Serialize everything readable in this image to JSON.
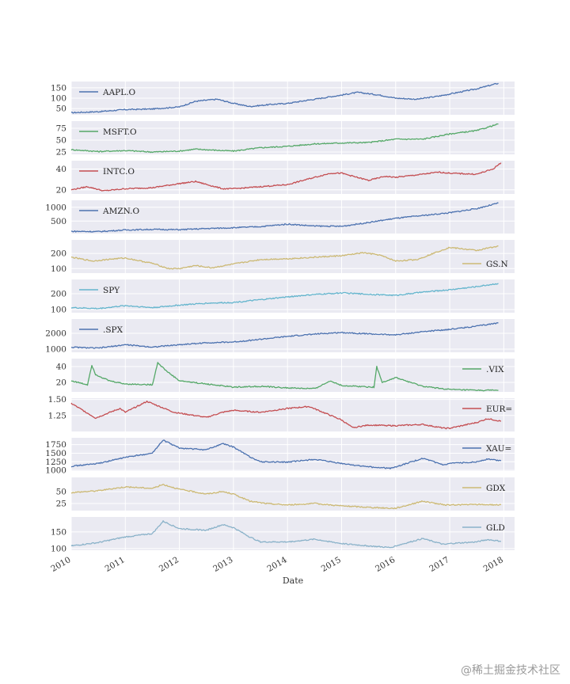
{
  "chart_data": {
    "type": "line",
    "layout": "stacked-subplots",
    "xlabel": "Date",
    "x_ticks": [
      "2010",
      "2011",
      "2012",
      "2013",
      "2014",
      "2015",
      "2016",
      "2017",
      "2018"
    ],
    "x_range": [
      2010.0,
      2018.2
    ],
    "series": [
      {
        "name": "AAPL.O",
        "color": "#4c72b0",
        "legend_pos": "upper-left",
        "ylim": [
          20,
          180
        ],
        "yticks": [
          50,
          100,
          150
        ],
        "points": [
          [
            2010.0,
            30
          ],
          [
            2010.5,
            35
          ],
          [
            2011.0,
            45
          ],
          [
            2011.5,
            48
          ],
          [
            2012.0,
            58
          ],
          [
            2012.3,
            85
          ],
          [
            2012.7,
            95
          ],
          [
            2013.0,
            75
          ],
          [
            2013.3,
            60
          ],
          [
            2013.7,
            70
          ],
          [
            2014.0,
            75
          ],
          [
            2014.5,
            95
          ],
          [
            2015.0,
            115
          ],
          [
            2015.3,
            128
          ],
          [
            2015.7,
            115
          ],
          [
            2016.0,
            100
          ],
          [
            2016.4,
            95
          ],
          [
            2016.8,
            110
          ],
          [
            2017.0,
            120
          ],
          [
            2017.5,
            145
          ],
          [
            2017.9,
            172
          ]
        ]
      },
      {
        "name": "MSFT.O",
        "color": "#55a868",
        "legend_pos": "upper-left",
        "ylim": [
          20,
          90
        ],
        "yticks": [
          25,
          50,
          75
        ],
        "points": [
          [
            2010.0,
            30
          ],
          [
            2010.5,
            26
          ],
          [
            2011.0,
            28
          ],
          [
            2011.5,
            25
          ],
          [
            2012.0,
            27
          ],
          [
            2012.3,
            31
          ],
          [
            2012.8,
            28
          ],
          [
            2013.0,
            27
          ],
          [
            2013.5,
            34
          ],
          [
            2014.0,
            37
          ],
          [
            2014.5,
            42
          ],
          [
            2015.0,
            44
          ],
          [
            2015.5,
            45
          ],
          [
            2016.0,
            52
          ],
          [
            2016.5,
            52
          ],
          [
            2017.0,
            63
          ],
          [
            2017.5,
            70
          ],
          [
            2017.9,
            84
          ]
        ]
      },
      {
        "name": "INTC.O",
        "color": "#c44e52",
        "legend_pos": "upper-left",
        "ylim": [
          16,
          48
        ],
        "yticks": [
          20,
          40
        ],
        "points": [
          [
            2010.0,
            20
          ],
          [
            2010.3,
            23
          ],
          [
            2010.6,
            19
          ],
          [
            2011.0,
            21
          ],
          [
            2011.5,
            22
          ],
          [
            2012.0,
            26
          ],
          [
            2012.3,
            28
          ],
          [
            2012.8,
            21
          ],
          [
            2013.0,
            21
          ],
          [
            2013.5,
            23
          ],
          [
            2014.0,
            25
          ],
          [
            2014.5,
            32
          ],
          [
            2014.8,
            36
          ],
          [
            2015.0,
            36
          ],
          [
            2015.5,
            29
          ],
          [
            2015.8,
            33
          ],
          [
            2016.0,
            32
          ],
          [
            2016.5,
            35
          ],
          [
            2016.8,
            37
          ],
          [
            2017.0,
            36
          ],
          [
            2017.5,
            35
          ],
          [
            2017.8,
            40
          ],
          [
            2017.95,
            46
          ]
        ]
      },
      {
        "name": "AMZN.O",
        "color": "#4c72b0",
        "legend_pos": "upper-left",
        "ylim": [
          50,
          1250
        ],
        "yticks": [
          500,
          1000
        ],
        "points": [
          [
            2010.0,
            130
          ],
          [
            2010.5,
            120
          ],
          [
            2011.0,
            180
          ],
          [
            2011.5,
            200
          ],
          [
            2012.0,
            190
          ],
          [
            2012.5,
            230
          ],
          [
            2013.0,
            260
          ],
          [
            2013.5,
            300
          ],
          [
            2014.0,
            390
          ],
          [
            2014.5,
            320
          ],
          [
            2015.0,
            310
          ],
          [
            2015.5,
            450
          ],
          [
            2016.0,
            600
          ],
          [
            2016.5,
            700
          ],
          [
            2017.0,
            800
          ],
          [
            2017.5,
            950
          ],
          [
            2017.9,
            1150
          ]
        ]
      },
      {
        "name": "GS.N",
        "color": "#ccb974",
        "legend_pos": "lower-right",
        "ylim": [
          70,
          290
        ],
        "yticks": [
          100,
          200
        ],
        "points": [
          [
            2010.0,
            175
          ],
          [
            2010.4,
            150
          ],
          [
            2010.8,
            165
          ],
          [
            2011.0,
            170
          ],
          [
            2011.5,
            135
          ],
          [
            2011.8,
            100
          ],
          [
            2012.0,
            100
          ],
          [
            2012.3,
            120
          ],
          [
            2012.6,
            105
          ],
          [
            2013.0,
            130
          ],
          [
            2013.5,
            160
          ],
          [
            2014.0,
            165
          ],
          [
            2014.5,
            175
          ],
          [
            2015.0,
            185
          ],
          [
            2015.4,
            205
          ],
          [
            2015.7,
            190
          ],
          [
            2016.0,
            150
          ],
          [
            2016.4,
            160
          ],
          [
            2016.8,
            215
          ],
          [
            2017.0,
            240
          ],
          [
            2017.5,
            220
          ],
          [
            2017.9,
            250
          ]
        ]
      },
      {
        "name": "SPY",
        "color": "#64b5cd",
        "legend_pos": "upper-left",
        "ylim": [
          80,
          290
        ],
        "yticks": [
          100,
          200
        ],
        "points": [
          [
            2010.0,
            112
          ],
          [
            2010.5,
            106
          ],
          [
            2011.0,
            125
          ],
          [
            2011.5,
            112
          ],
          [
            2012.0,
            128
          ],
          [
            2012.5,
            140
          ],
          [
            2013.0,
            145
          ],
          [
            2013.5,
            162
          ],
          [
            2014.0,
            180
          ],
          [
            2014.5,
            195
          ],
          [
            2015.0,
            205
          ],
          [
            2015.6,
            195
          ],
          [
            2016.0,
            190
          ],
          [
            2016.5,
            210
          ],
          [
            2017.0,
            225
          ],
          [
            2017.5,
            245
          ],
          [
            2017.9,
            265
          ]
        ]
      },
      {
        "name": ".SPX",
        "color": "#4c72b0",
        "legend_pos": "upper-left",
        "ylim": [
          800,
          2900
        ],
        "yticks": [
          1000,
          2000
        ],
        "points": [
          [
            2010.0,
            1120
          ],
          [
            2010.5,
            1060
          ],
          [
            2011.0,
            1280
          ],
          [
            2011.5,
            1130
          ],
          [
            2012.0,
            1280
          ],
          [
            2012.5,
            1400
          ],
          [
            2013.0,
            1450
          ],
          [
            2013.5,
            1620
          ],
          [
            2014.0,
            1800
          ],
          [
            2014.5,
            1950
          ],
          [
            2015.0,
            2050
          ],
          [
            2015.6,
            1950
          ],
          [
            2016.0,
            1900
          ],
          [
            2016.5,
            2100
          ],
          [
            2017.0,
            2250
          ],
          [
            2017.5,
            2450
          ],
          [
            2017.9,
            2650
          ]
        ]
      },
      {
        "name": ".VIX",
        "color": "#55a868",
        "legend_pos": "upper-right",
        "ylim": [
          8,
          50
        ],
        "yticks": [
          20,
          40
        ],
        "points": [
          [
            2010.0,
            22
          ],
          [
            2010.3,
            17
          ],
          [
            2010.38,
            42
          ],
          [
            2010.45,
            30
          ],
          [
            2010.7,
            22
          ],
          [
            2011.0,
            18
          ],
          [
            2011.5,
            17
          ],
          [
            2011.6,
            45
          ],
          [
            2011.75,
            35
          ],
          [
            2012.0,
            22
          ],
          [
            2012.5,
            18
          ],
          [
            2013.0,
            14
          ],
          [
            2013.5,
            15
          ],
          [
            2014.0,
            13
          ],
          [
            2014.5,
            12
          ],
          [
            2014.8,
            22
          ],
          [
            2015.0,
            16
          ],
          [
            2015.6,
            14
          ],
          [
            2015.65,
            40
          ],
          [
            2015.75,
            20
          ],
          [
            2016.0,
            26
          ],
          [
            2016.5,
            15
          ],
          [
            2017.0,
            11
          ],
          [
            2017.5,
            10
          ],
          [
            2017.9,
            10
          ]
        ]
      },
      {
        "name": "EUR=",
        "color": "#c44e52",
        "legend_pos": "upper-right",
        "ylim": [
          1.0,
          1.52
        ],
        "yticks": [
          1.25,
          1.5
        ],
        "points": [
          [
            2010.0,
            1.44
          ],
          [
            2010.45,
            1.21
          ],
          [
            2010.9,
            1.36
          ],
          [
            2011.0,
            1.3
          ],
          [
            2011.4,
            1.47
          ],
          [
            2011.9,
            1.3
          ],
          [
            2012.5,
            1.22
          ],
          [
            2012.8,
            1.3
          ],
          [
            2013.0,
            1.33
          ],
          [
            2013.5,
            1.3
          ],
          [
            2014.0,
            1.36
          ],
          [
            2014.4,
            1.39
          ],
          [
            2014.8,
            1.25
          ],
          [
            2015.0,
            1.18
          ],
          [
            2015.2,
            1.06
          ],
          [
            2015.5,
            1.1
          ],
          [
            2016.0,
            1.09
          ],
          [
            2016.5,
            1.11
          ],
          [
            2016.9,
            1.05
          ],
          [
            2017.0,
            1.05
          ],
          [
            2017.5,
            1.14
          ],
          [
            2017.7,
            1.2
          ],
          [
            2017.95,
            1.16
          ]
        ]
      },
      {
        "name": "XAU=",
        "color": "#4c72b0",
        "legend_pos": "upper-right",
        "ylim": [
          980,
          1950
        ],
        "yticks": [
          1000,
          1250,
          1500,
          1750
        ],
        "points": [
          [
            2010.0,
            1120
          ],
          [
            2010.5,
            1200
          ],
          [
            2011.0,
            1380
          ],
          [
            2011.5,
            1500
          ],
          [
            2011.7,
            1880
          ],
          [
            2012.0,
            1650
          ],
          [
            2012.5,
            1600
          ],
          [
            2012.8,
            1780
          ],
          [
            2013.0,
            1680
          ],
          [
            2013.3,
            1400
          ],
          [
            2013.5,
            1250
          ],
          [
            2014.0,
            1240
          ],
          [
            2014.5,
            1320
          ],
          [
            2015.0,
            1200
          ],
          [
            2015.5,
            1100
          ],
          [
            2015.9,
            1060
          ],
          [
            2016.0,
            1100
          ],
          [
            2016.5,
            1350
          ],
          [
            2016.9,
            1150
          ],
          [
            2017.0,
            1200
          ],
          [
            2017.5,
            1250
          ],
          [
            2017.7,
            1330
          ],
          [
            2017.95,
            1280
          ]
        ]
      },
      {
        "name": "GDX",
        "color": "#ccb974",
        "legend_pos": "upper-right",
        "ylim": [
          10,
          80
        ],
        "yticks": [
          25,
          50
        ],
        "points": [
          [
            2010.0,
            48
          ],
          [
            2010.5,
            52
          ],
          [
            2011.0,
            60
          ],
          [
            2011.5,
            57
          ],
          [
            2011.7,
            65
          ],
          [
            2012.0,
            55
          ],
          [
            2012.5,
            45
          ],
          [
            2012.8,
            50
          ],
          [
            2013.0,
            45
          ],
          [
            2013.3,
            30
          ],
          [
            2013.6,
            25
          ],
          [
            2014.0,
            22
          ],
          [
            2014.5,
            25
          ],
          [
            2015.0,
            20
          ],
          [
            2015.5,
            17
          ],
          [
            2015.9,
            15
          ],
          [
            2016.0,
            15
          ],
          [
            2016.5,
            30
          ],
          [
            2016.9,
            22
          ],
          [
            2017.0,
            22
          ],
          [
            2017.5,
            23
          ],
          [
            2017.95,
            22
          ]
        ]
      },
      {
        "name": "GLD",
        "color": "#8ab2c9",
        "legend_pos": "upper-right",
        "ylim": [
          95,
          195
        ],
        "yticks": [
          100,
          150
        ],
        "points": [
          [
            2010.0,
            108
          ],
          [
            2010.5,
            118
          ],
          [
            2011.0,
            135
          ],
          [
            2011.5,
            145
          ],
          [
            2011.7,
            182
          ],
          [
            2012.0,
            160
          ],
          [
            2012.5,
            155
          ],
          [
            2012.8,
            172
          ],
          [
            2013.0,
            163
          ],
          [
            2013.3,
            135
          ],
          [
            2013.5,
            120
          ],
          [
            2014.0,
            120
          ],
          [
            2014.5,
            128
          ],
          [
            2015.0,
            115
          ],
          [
            2015.5,
            108
          ],
          [
            2015.9,
            103
          ],
          [
            2016.0,
            108
          ],
          [
            2016.5,
            130
          ],
          [
            2016.9,
            112
          ],
          [
            2017.0,
            115
          ],
          [
            2017.5,
            120
          ],
          [
            2017.7,
            127
          ],
          [
            2017.95,
            122
          ]
        ]
      }
    ]
  },
  "watermark": "@稀土掘金技术社区"
}
